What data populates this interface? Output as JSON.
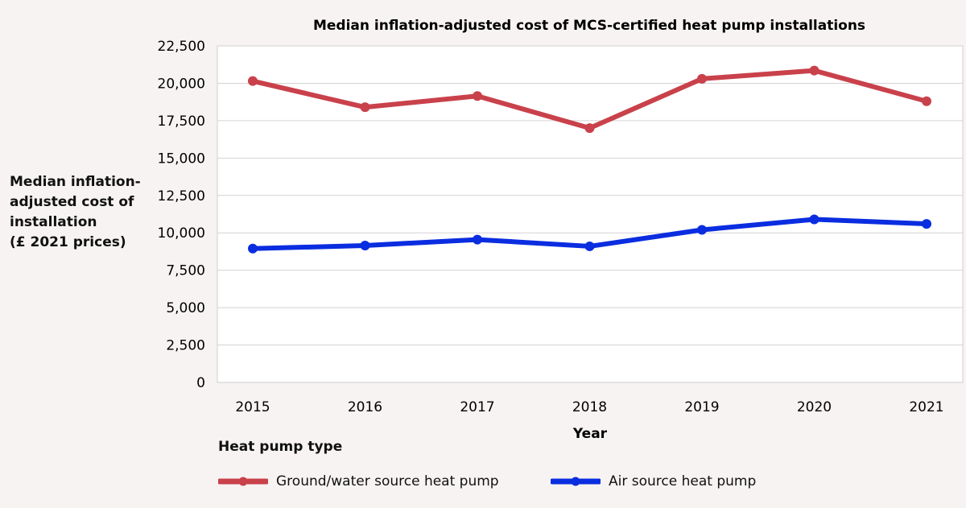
{
  "chart_data": {
    "type": "line",
    "title": "Median inflation-adjusted cost of MCS-certified heat pump installations",
    "xlabel": "Year",
    "ylabel_lines": [
      "Median inflation-",
      "adjusted cost of",
      "installation",
      "(£ 2021 prices)"
    ],
    "categories": [
      "2015",
      "2016",
      "2017",
      "2018",
      "2019",
      "2020",
      "2021"
    ],
    "y_ticks": [
      "0",
      "2,500",
      "5,000",
      "7,500",
      "10,000",
      "12,500",
      "15,000",
      "17,500",
      "20,000",
      "22,500"
    ],
    "ylim": [
      0,
      22500
    ],
    "grid": true,
    "legend_title": "Heat pump type",
    "legend_position": "bottom-left",
    "series": [
      {
        "name": "Ground/water source heat pump",
        "color": "#c9414b",
        "values": [
          20150,
          18400,
          19150,
          17000,
          20300,
          20850,
          18800
        ]
      },
      {
        "name": "Air source heat pump",
        "color": "#0a2de0",
        "values": [
          8950,
          9150,
          9550,
          9100,
          10200,
          10900,
          10600
        ]
      }
    ]
  }
}
